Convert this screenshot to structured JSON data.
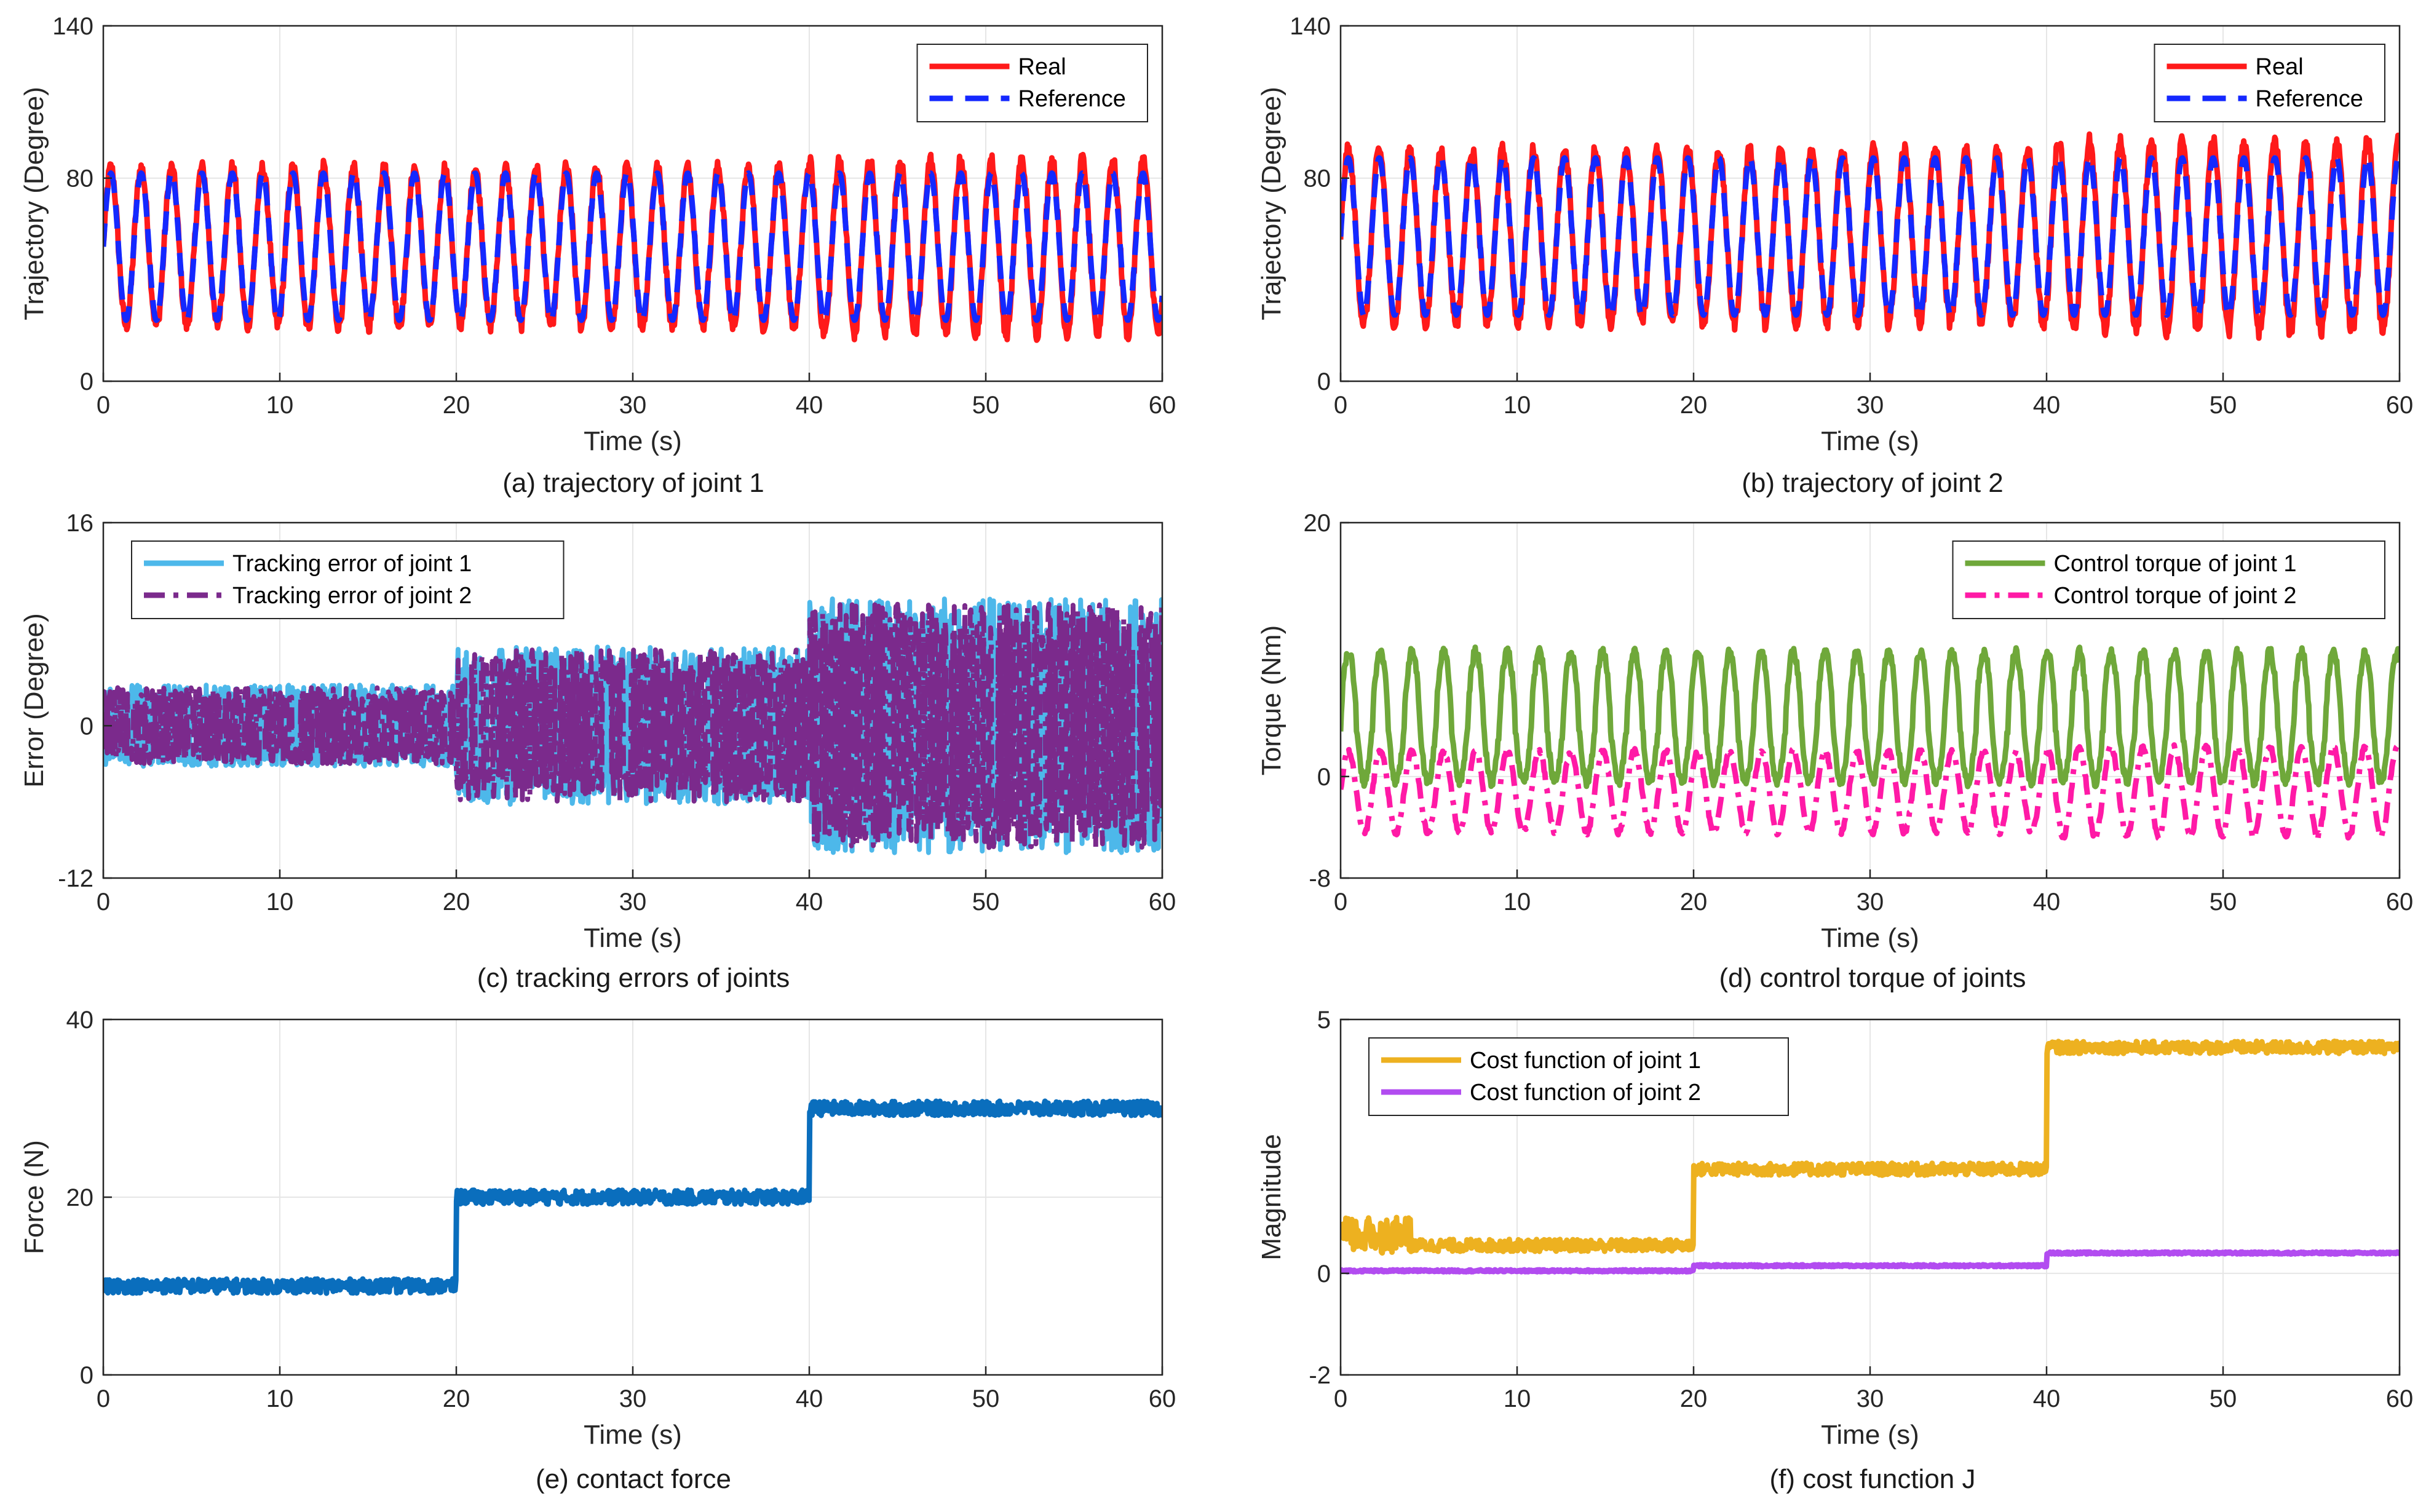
{
  "chart_data": [
    {
      "id": "a",
      "type": "line",
      "caption": "(a) trajectory of joint 1",
      "xlabel": "Time (s)",
      "ylabel": "Trajectory (Degree)",
      "xlim": [
        0,
        60
      ],
      "ylim": [
        0,
        140
      ],
      "xticks": [
        "0",
        "10",
        "20",
        "30",
        "40",
        "50",
        "60"
      ],
      "yticks": [
        "0",
        "80",
        "140"
      ],
      "ytick_values": [
        0,
        80,
        140
      ],
      "grid": true,
      "legend_position": "top-right",
      "series": [
        {
          "name": "Real",
          "color": "#ff1a1a",
          "style": "solid",
          "description": "sinusoid about 1.7 s period, range approx 22 to 85 deg, overshoot up to 92 deg and down to 15 deg after 40 s",
          "center": 53,
          "amplitude": 31,
          "period": 1.72,
          "noise": 3
        },
        {
          "name": "Reference",
          "color": "#1428ff",
          "style": "dashed",
          "description": "sinusoid about 1.7 s period, range approx 24 to 82 deg",
          "center": 53,
          "amplitude": 29,
          "period": 1.72,
          "noise": 0
        }
      ]
    },
    {
      "id": "b",
      "type": "line",
      "caption": "(b) trajectory of joint 2",
      "xlabel": "Time (s)",
      "ylabel": "Trajectory (Degree)",
      "xlim": [
        0,
        60
      ],
      "ylim": [
        0,
        140
      ],
      "xticks": [
        "0",
        "10",
        "20",
        "30",
        "40",
        "50",
        "60"
      ],
      "yticks": [
        "0",
        "80",
        "140"
      ],
      "ytick_values": [
        0,
        80,
        140
      ],
      "grid": true,
      "legend_position": "top-right",
      "series": [
        {
          "name": "Real",
          "color": "#ff1a1a",
          "style": "solid",
          "description": "sinusoid about 1.75 s period, range approx 22 to 92 deg, up to 98 deg after 40 s",
          "center": 57,
          "amplitude": 34,
          "period": 1.75,
          "noise": 3
        },
        {
          "name": "Reference",
          "color": "#1428ff",
          "style": "dashed",
          "description": "sinusoid about 1.75 s period, range approx 26 to 88 deg",
          "center": 57,
          "amplitude": 31,
          "period": 1.75,
          "noise": 0
        }
      ]
    },
    {
      "id": "c",
      "type": "line",
      "caption": "(c) tracking errors of joints",
      "xlabel": "Time (s)",
      "ylabel": "Error (Degree)",
      "xlim": [
        0,
        60
      ],
      "ylim": [
        -12,
        16
      ],
      "xticks": [
        "0",
        "10",
        "20",
        "30",
        "40",
        "50",
        "60"
      ],
      "yticks": [
        "-12",
        "0",
        "16"
      ],
      "ytick_values": [
        -12,
        0,
        16
      ],
      "grid": true,
      "legend_position": "top-left",
      "series": [
        {
          "name": "Tracking error of joint 1",
          "color": "#4db8ea",
          "style": "solid",
          "description": "oscillates within about +/-3 deg for 0-20 s, +/-6 deg for 20-40 s, +/-10 deg for 40-60 s",
          "bands": [
            [
              0,
              20,
              3.2
            ],
            [
              20,
              40,
              6.2
            ],
            [
              40,
              60,
              10.0
            ]
          ]
        },
        {
          "name": "Tracking error of joint 2",
          "color": "#7b2a8c",
          "style": "dashdot",
          "description": "oscillates within about +/-3 deg for 0-20 s, +/-6 deg for 20-40 s, +/-10 deg for 40-60 s",
          "bands": [
            [
              0,
              20,
              3.0
            ],
            [
              20,
              40,
              6.0
            ],
            [
              40,
              60,
              9.6
            ]
          ]
        }
      ]
    },
    {
      "id": "d",
      "type": "line",
      "caption": "(d) control torque of joints",
      "xlabel": "Time (s)",
      "ylabel": "Torque (Nm)",
      "xlim": [
        0,
        60
      ],
      "ylim": [
        -8,
        20
      ],
      "xticks": [
        "0",
        "10",
        "20",
        "30",
        "40",
        "50",
        "60"
      ],
      "yticks": [
        "-8",
        "0",
        "20"
      ],
      "ytick_values": [
        -8,
        0,
        20
      ],
      "grid": true,
      "legend_position": "top-right",
      "series": [
        {
          "name": "Control torque of joint 1",
          "color": "#6fa83a",
          "style": "solid",
          "description": "periodic about 1.8 s, range approx -2 to 10 Nm",
          "center": 3.8,
          "amplitude": 6.0,
          "period": 1.8,
          "noise": 0.4
        },
        {
          "name": "Control torque of joint 2",
          "color": "#ff1aa6",
          "style": "dashdot",
          "description": "periodic about 1.8 s, range approx -4.5 to 2 Nm",
          "center": -1.2,
          "amplitude": 3.2,
          "period": 1.8,
          "noise": 0.2
        }
      ]
    },
    {
      "id": "e",
      "type": "line",
      "caption": "(e) contact force",
      "xlabel": "Time (s)",
      "ylabel": "Force (N)",
      "xlim": [
        0,
        60
      ],
      "ylim": [
        0,
        40
      ],
      "xticks": [
        "0",
        "10",
        "20",
        "30",
        "40",
        "50",
        "60"
      ],
      "yticks": [
        "0",
        "20",
        "40"
      ],
      "ytick_values": [
        0,
        20,
        40
      ],
      "grid": true,
      "legend_position": "none",
      "series": [
        {
          "name": "Contact force",
          "color": "#0a6ebd",
          "style": "solid",
          "levels": [
            [
              0,
              20,
              10
            ],
            [
              20,
              40,
              20
            ],
            [
              40,
              60,
              30
            ]
          ],
          "noise": 0.8
        }
      ]
    },
    {
      "id": "f",
      "type": "line",
      "caption": "(f) cost function J",
      "xlabel": "Time (s)",
      "ylabel": "Magnitude",
      "xlim": [
        0,
        60
      ],
      "ylim": [
        -2,
        5
      ],
      "xticks": [
        "0",
        "10",
        "20",
        "30",
        "40",
        "50",
        "60"
      ],
      "yticks": [
        "-2",
        "0",
        "5"
      ],
      "ytick_values": [
        -2,
        0,
        5
      ],
      "grid": true,
      "legend_position": "top-left",
      "series": [
        {
          "name": "Cost function of joint 1",
          "color": "#edb120",
          "style": "solid",
          "levels": [
            [
              0,
              4,
              0.75
            ],
            [
              4,
              20,
              0.55
            ],
            [
              20,
              40,
              2.05
            ],
            [
              40,
              60,
              4.45
            ]
          ],
          "noise": 0.12
        },
        {
          "name": "Cost function of joint 2",
          "color": "#b24cf0",
          "style": "solid",
          "levels": [
            [
              0,
              20,
              0.05
            ],
            [
              20,
              40,
              0.15
            ],
            [
              40,
              60,
              0.4
            ]
          ],
          "noise": 0.02
        }
      ]
    }
  ]
}
